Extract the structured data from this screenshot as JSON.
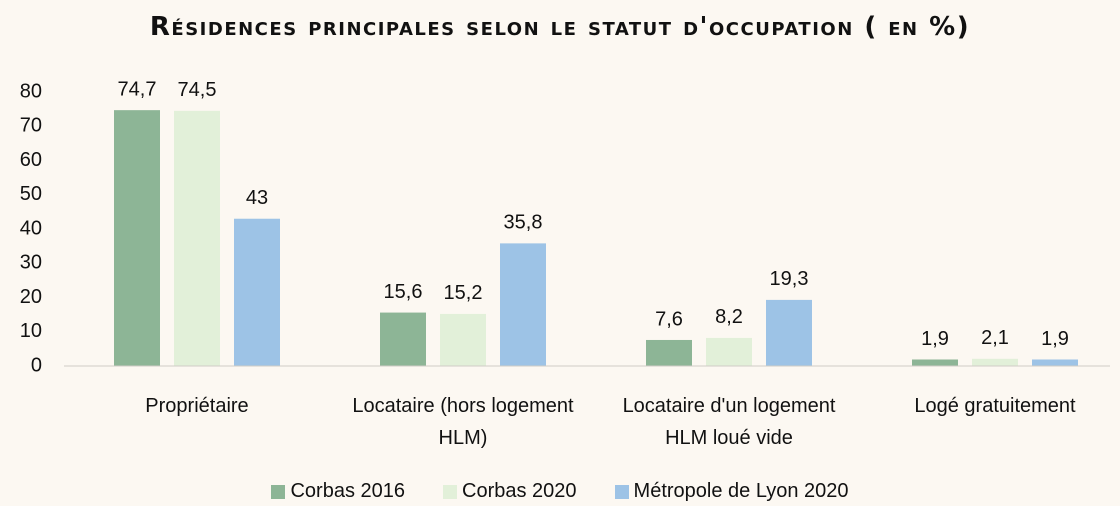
{
  "chart_data": {
    "type": "bar",
    "title": "Résidences principales selon le statut d'occupation ( en %)",
    "categories": [
      "Propriétaire",
      "Locataire (hors logement HLM)",
      "Locataire d'un logement HLM loué vide",
      "Logé gratuitement"
    ],
    "series": [
      {
        "name": "Corbas 2016",
        "color": "#8db596",
        "values": [
          74.7,
          15.6,
          7.6,
          1.9
        ],
        "value_labels": [
          "74,7",
          "15,6",
          "7,6",
          "1,9"
        ]
      },
      {
        "name": "Corbas 2020",
        "color": "#e2f0d9",
        "values": [
          74.5,
          15.2,
          8.2,
          2.1
        ],
        "value_labels": [
          "74,5",
          "15,2",
          "8,2",
          "2,1"
        ]
      },
      {
        "name": "Métropole de Lyon 2020",
        "color": "#9dc3e6",
        "values": [
          43,
          35.8,
          19.3,
          1.9
        ],
        "value_labels": [
          "43",
          "35,8",
          "19,3",
          "1,9"
        ]
      }
    ],
    "ylim": [
      0,
      80
    ],
    "yticks": [
      0,
      10,
      20,
      30,
      40,
      50,
      60,
      70,
      80
    ],
    "grid": false,
    "legend": "bottom"
  }
}
